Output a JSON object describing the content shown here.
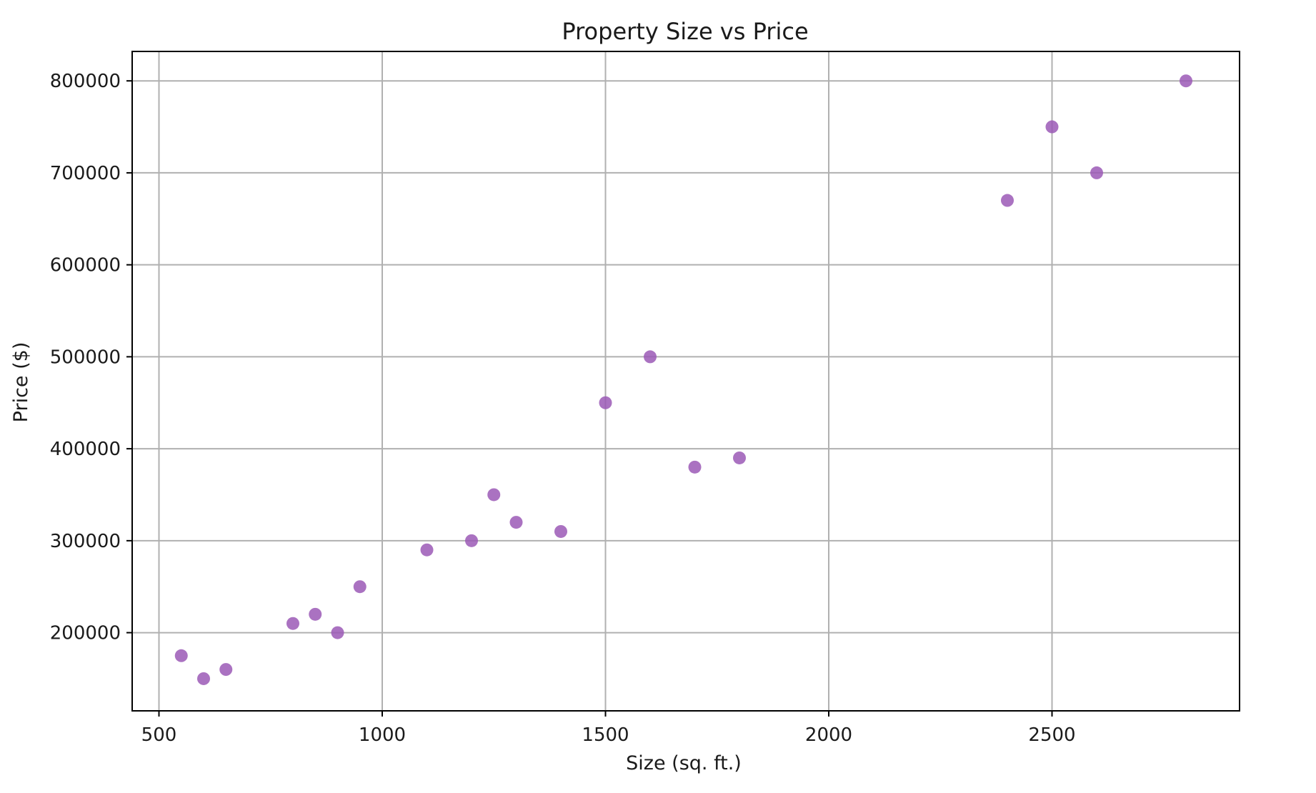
{
  "chart_data": {
    "type": "scatter",
    "title": "Property Size vs Price",
    "xlabel": "Size (sq. ft.)",
    "ylabel": "Price ($)",
    "xlim": [
      440,
      2920
    ],
    "ylim": [
      115000,
      832000
    ],
    "xticks": [
      500,
      1000,
      1500,
      2000,
      2500
    ],
    "yticks": [
      200000,
      300000,
      400000,
      500000,
      600000,
      700000,
      800000
    ],
    "grid": true,
    "legend": "none",
    "marker_color": "#9b59b6",
    "points": [
      {
        "x": 550,
        "y": 175000
      },
      {
        "x": 600,
        "y": 150000
      },
      {
        "x": 650,
        "y": 160000
      },
      {
        "x": 800,
        "y": 210000
      },
      {
        "x": 850,
        "y": 220000
      },
      {
        "x": 900,
        "y": 200000
      },
      {
        "x": 950,
        "y": 250000
      },
      {
        "x": 1100,
        "y": 290000
      },
      {
        "x": 1200,
        "y": 300000
      },
      {
        "x": 1250,
        "y": 350000
      },
      {
        "x": 1300,
        "y": 320000
      },
      {
        "x": 1400,
        "y": 310000
      },
      {
        "x": 1500,
        "y": 450000
      },
      {
        "x": 1600,
        "y": 500000
      },
      {
        "x": 1700,
        "y": 380000
      },
      {
        "x": 1800,
        "y": 390000
      },
      {
        "x": 2400,
        "y": 670000
      },
      {
        "x": 2500,
        "y": 750000
      },
      {
        "x": 2600,
        "y": 700000
      },
      {
        "x": 2800,
        "y": 800000
      }
    ]
  }
}
